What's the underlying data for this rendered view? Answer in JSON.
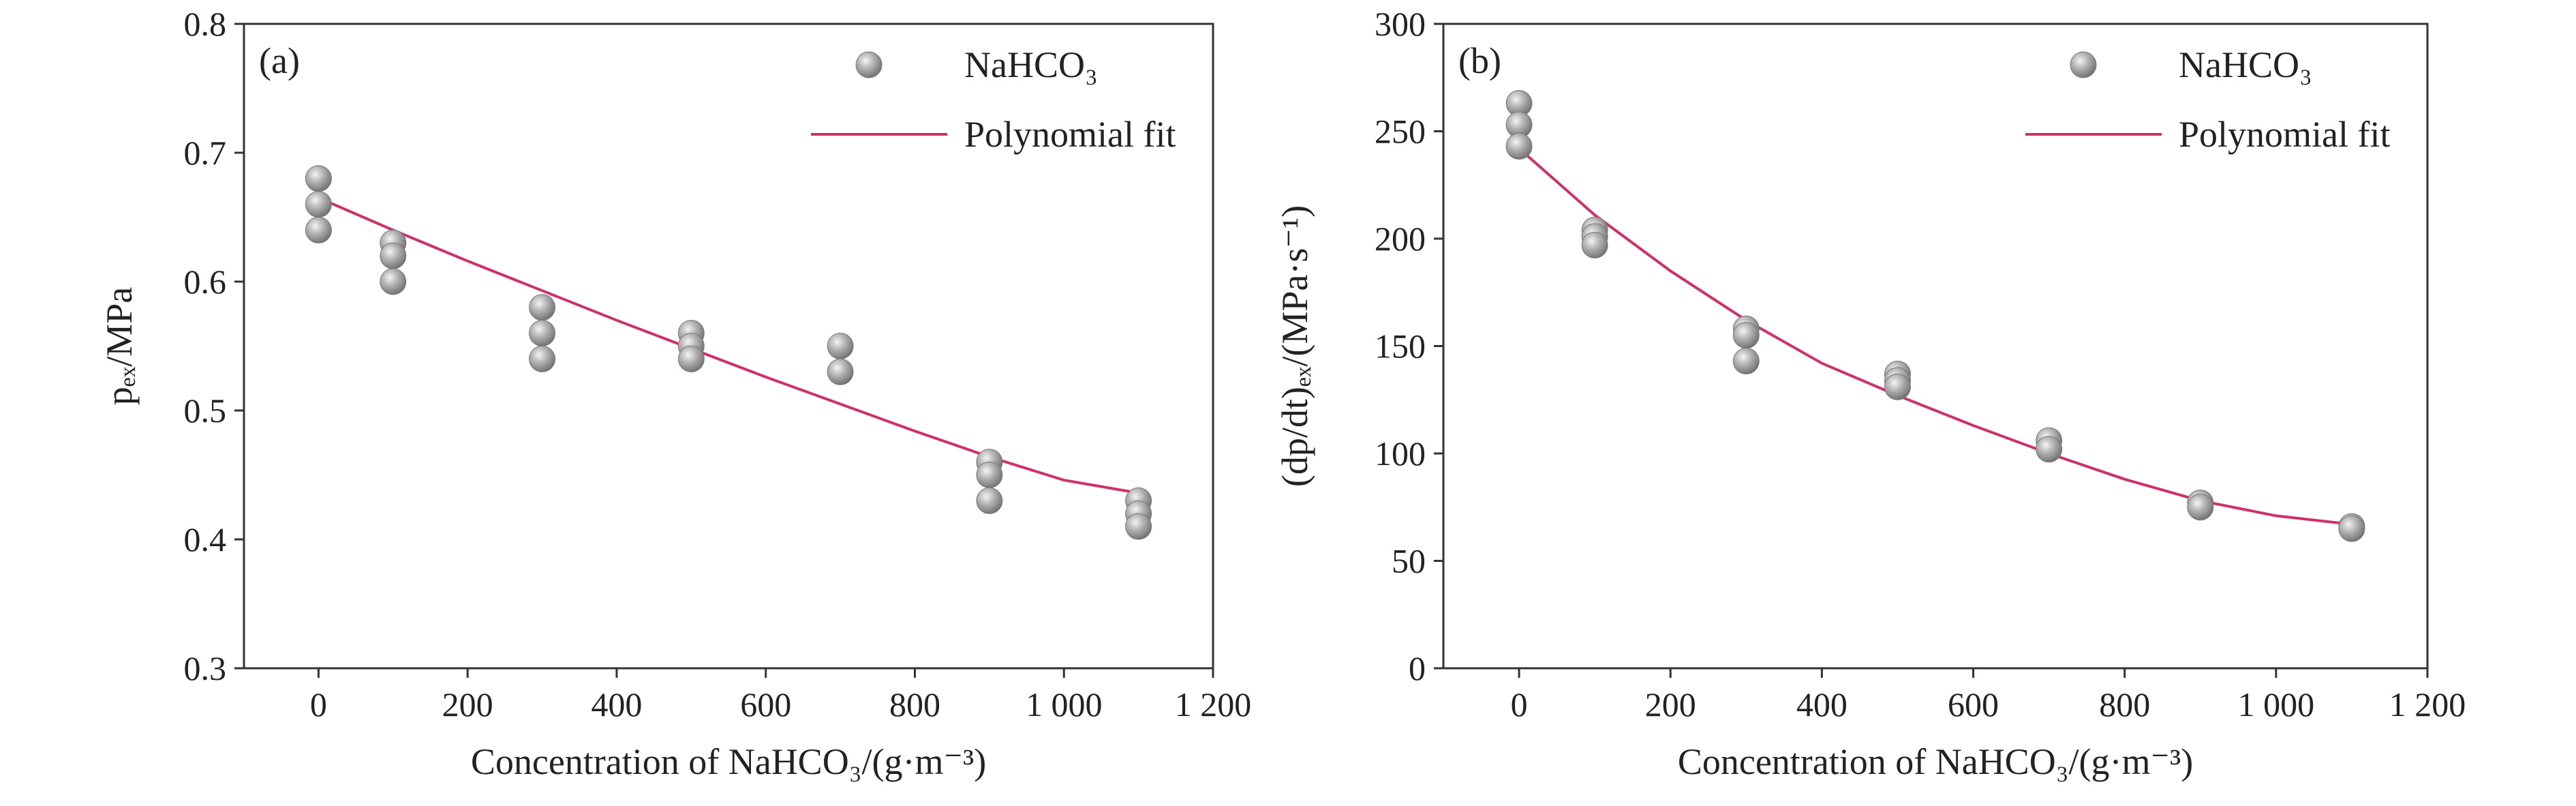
{
  "chart_data": [
    {
      "type": "scatter",
      "panel_label": "(a)",
      "xlabel": "Concentration of NaHCO₃/(g·m⁻³)",
      "ylabel": "pₑₓ/MPa",
      "xlim": [
        -100,
        1200
      ],
      "ylim": [
        0.3,
        0.8
      ],
      "xticks": [
        0,
        200,
        400,
        600,
        800,
        1000,
        1200
      ],
      "xtick_labels": [
        "0",
        "200",
        "400",
        "600",
        "800",
        "1 000",
        "1 200"
      ],
      "yticks": [
        0.3,
        0.4,
        0.5,
        0.6,
        0.7,
        0.8
      ],
      "ytick_labels": [
        "0.3",
        "0.4",
        "0.5",
        "0.6",
        "0.7",
        "0.8"
      ],
      "legend_position": "top-right",
      "series": [
        {
          "name": "NaHCO₃",
          "kind": "scatter",
          "color": "#a0a0a0",
          "points": [
            [
              0,
              0.68
            ],
            [
              0,
              0.66
            ],
            [
              0,
              0.64
            ],
            [
              100,
              0.63
            ],
            [
              100,
              0.62
            ],
            [
              100,
              0.6
            ],
            [
              300,
              0.58
            ],
            [
              300,
              0.56
            ],
            [
              300,
              0.54
            ],
            [
              500,
              0.56
            ],
            [
              500,
              0.55
            ],
            [
              500,
              0.54
            ],
            [
              700,
              0.55
            ],
            [
              700,
              0.53
            ],
            [
              900,
              0.46
            ],
            [
              900,
              0.45
            ],
            [
              900,
              0.43
            ],
            [
              1100,
              0.43
            ],
            [
              1100,
              0.42
            ],
            [
              1100,
              0.41
            ]
          ]
        },
        {
          "name": "Polynomial fit",
          "kind": "line",
          "color": "#d0306a",
          "points": [
            [
              0,
              0.665
            ],
            [
              100,
              0.64
            ],
            [
              200,
              0.616
            ],
            [
              300,
              0.593
            ],
            [
              400,
              0.57
            ],
            [
              500,
              0.548
            ],
            [
              600,
              0.526
            ],
            [
              700,
              0.505
            ],
            [
              800,
              0.484
            ],
            [
              900,
              0.464
            ],
            [
              1000,
              0.446
            ],
            [
              1100,
              0.436
            ]
          ]
        }
      ]
    },
    {
      "type": "scatter",
      "panel_label": "(b)",
      "xlabel": "Concentration of NaHCO₃/(g·m⁻³)",
      "ylabel": "(dp/dt)ₑₓ/(MPa·s⁻¹)",
      "xlim": [
        -100,
        1200
      ],
      "ylim": [
        0,
        300
      ],
      "xticks": [
        0,
        200,
        400,
        600,
        800,
        1000,
        1200
      ],
      "xtick_labels": [
        "0",
        "200",
        "400",
        "600",
        "800",
        "1 000",
        "1 200"
      ],
      "yticks": [
        0,
        50,
        100,
        150,
        200,
        250,
        300
      ],
      "ytick_labels": [
        "0",
        "50",
        "100",
        "150",
        "200",
        "250",
        "300"
      ],
      "legend_position": "top-right",
      "series": [
        {
          "name": "NaHCO₃",
          "kind": "scatter",
          "color": "#a0a0a0",
          "points": [
            [
              0,
              263
            ],
            [
              0,
              253
            ],
            [
              0,
              243
            ],
            [
              100,
              204
            ],
            [
              100,
              201
            ],
            [
              100,
              197
            ],
            [
              300,
              158
            ],
            [
              300,
              155
            ],
            [
              300,
              143
            ],
            [
              500,
              137
            ],
            [
              500,
              134
            ],
            [
              500,
              131
            ],
            [
              700,
              106
            ],
            [
              700,
              102
            ],
            [
              900,
              77
            ],
            [
              900,
              75
            ],
            [
              1100,
              66
            ],
            [
              1100,
              65
            ]
          ]
        },
        {
          "name": "Polynomial fit",
          "kind": "line",
          "color": "#d0306a",
          "points": [
            [
              0,
              242
            ],
            [
              100,
              211
            ],
            [
              200,
              185
            ],
            [
              300,
              162
            ],
            [
              400,
              142
            ],
            [
              500,
              127
            ],
            [
              600,
              113
            ],
            [
              700,
              100
            ],
            [
              800,
              88
            ],
            [
              900,
              78
            ],
            [
              1000,
              71
            ],
            [
              1100,
              67
            ]
          ]
        }
      ]
    }
  ]
}
